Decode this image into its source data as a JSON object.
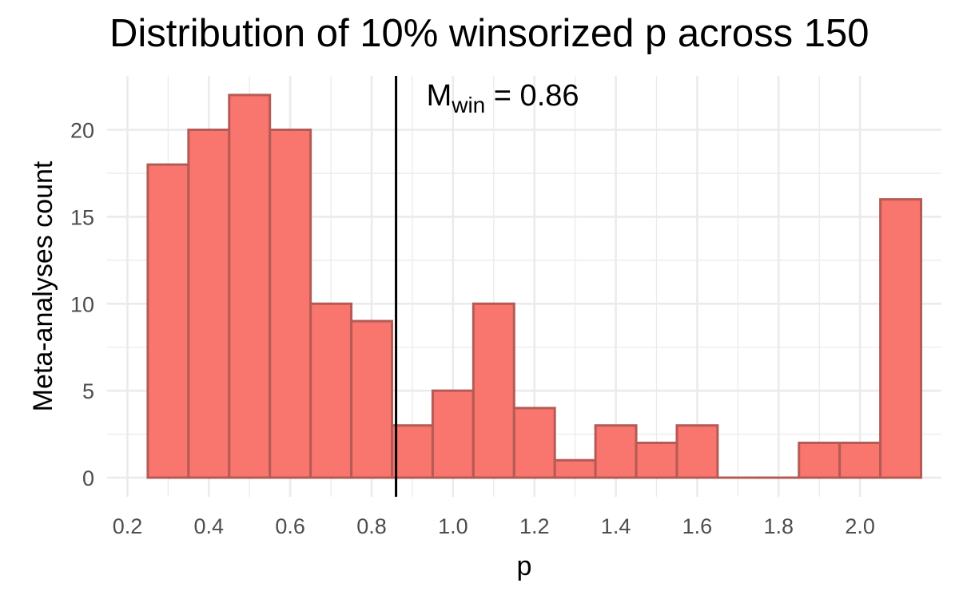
{
  "chart_data": {
    "type": "bar",
    "title": "Distribution of 10% winsorized p across 150",
    "xlabel": "p",
    "ylabel": "Meta-analyses count",
    "xlim": [
      0.15,
      2.2
    ],
    "ylim": [
      -1.1,
      23.1
    ],
    "x_ticks": [
      "0.2",
      "0.4",
      "0.6",
      "0.8",
      "1.0",
      "1.2",
      "1.4",
      "1.6",
      "1.8",
      "2.0"
    ],
    "y_ticks": [
      "0",
      "5",
      "10",
      "15",
      "20"
    ],
    "bin_width": 0.1,
    "x": [
      0.3,
      0.4,
      0.5,
      0.6,
      0.7,
      0.8,
      0.9,
      1.0,
      1.1,
      1.2,
      1.3,
      1.4,
      1.5,
      1.6,
      1.7,
      1.8,
      1.9,
      2.0,
      2.1
    ],
    "values": [
      18,
      20,
      22,
      20,
      10,
      9,
      3,
      5,
      10,
      4,
      1,
      3,
      2,
      3,
      0,
      0,
      2,
      2,
      16
    ],
    "vline": {
      "x": 0.86,
      "label_main": "M",
      "label_sub": "win",
      "label_rest": " = 0.86"
    },
    "grid": true,
    "colors": {
      "bar_fill": "#F8766D",
      "bar_stroke": "#B55A54",
      "grid": "#EBEBEB",
      "vline": "#000000"
    }
  }
}
